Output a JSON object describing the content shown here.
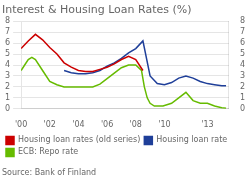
{
  "chart_data": {
    "type": "line",
    "title": "Interest & Housing Loan Rates (%)",
    "annotations": [
      "Source: Bank of Finland"
    ],
    "xlim": [
      2000,
      2014.5
    ],
    "xticks": [
      {
        "value": 2000,
        "label": "'00"
      },
      {
        "value": 2002,
        "label": "'02"
      },
      {
        "value": 2004,
        "label": "'04"
      },
      {
        "value": 2006,
        "label": "'06"
      },
      {
        "value": 2008,
        "label": "'08"
      },
      {
        "value": 2010,
        "label": "'10"
      },
      {
        "value": 2013,
        "label": "'13"
      }
    ],
    "ylim": [
      0,
      8
    ],
    "yticks": [
      0,
      1,
      2,
      3,
      4,
      5,
      6,
      7,
      8
    ],
    "y2lim": [
      0,
      8
    ],
    "y2ticks": [
      0,
      1,
      2,
      3,
      4,
      5,
      6,
      7,
      8
    ],
    "grid": "y",
    "legend": "bottom",
    "series": [
      {
        "name": "Housing loan rates (old series)",
        "color": "#cc0000",
        "x": [
          2000.0,
          2000.5,
          2001.0,
          2001.5,
          2002.0,
          2002.5,
          2003.0,
          2003.5,
          2004.0,
          2004.5,
          2005.0,
          2005.5,
          2006.0,
          2006.5,
          2007.0,
          2007.5,
          2008.0,
          2008.5
        ],
        "values": [
          5.5,
          6.2,
          6.8,
          6.3,
          5.6,
          5.0,
          4.2,
          3.8,
          3.5,
          3.4,
          3.4,
          3.6,
          3.8,
          4.1,
          4.5,
          4.8,
          4.5,
          3.5
        ]
      },
      {
        "name": "Housing loan rate",
        "color": "#1f3f99",
        "x": [
          2003.0,
          2003.5,
          2004.0,
          2004.5,
          2005.0,
          2005.5,
          2006.0,
          2006.5,
          2007.0,
          2007.5,
          2008.0,
          2008.5,
          2009.0,
          2009.0,
          2009.5,
          2010.0,
          2010.5,
          2011.0,
          2011.5,
          2012.0,
          2012.5,
          2013.0,
          2013.5,
          2014.0,
          2014.3
        ],
        "values": [
          3.5,
          3.3,
          3.2,
          3.2,
          3.3,
          3.5,
          3.9,
          4.2,
          4.6,
          5.1,
          5.5,
          6.2,
          3.0,
          3.0,
          2.3,
          2.2,
          2.4,
          2.8,
          3.0,
          2.8,
          2.5,
          2.3,
          2.2,
          2.1,
          2.1
        ]
      },
      {
        "name": "ECB: Repo rate",
        "color": "#66bb00",
        "x": [
          2000.0,
          2000.25,
          2000.5,
          2000.75,
          2001.0,
          2001.5,
          2002.0,
          2002.5,
          2003.0,
          2003.5,
          2004.0,
          2004.5,
          2005.0,
          2005.5,
          2006.0,
          2006.5,
          2007.0,
          2007.5,
          2008.0,
          2008.4,
          2008.6,
          2008.8,
          2009.0,
          2009.3,
          2009.6,
          2009.9,
          2010.5,
          2011.0,
          2011.5,
          2012.0,
          2012.5,
          2013.0,
          2013.5,
          2014.0,
          2014.3
        ],
        "values": [
          3.5,
          4.0,
          4.5,
          4.7,
          4.5,
          3.5,
          2.5,
          2.2,
          2.0,
          2.0,
          2.0,
          2.0,
          2.0,
          2.25,
          2.75,
          3.25,
          3.75,
          4.0,
          4.0,
          3.5,
          2.0,
          1.0,
          0.5,
          0.25,
          0.25,
          0.25,
          0.5,
          1.0,
          1.5,
          0.75,
          0.5,
          0.5,
          0.25,
          0.1,
          0.05
        ]
      }
    ]
  }
}
